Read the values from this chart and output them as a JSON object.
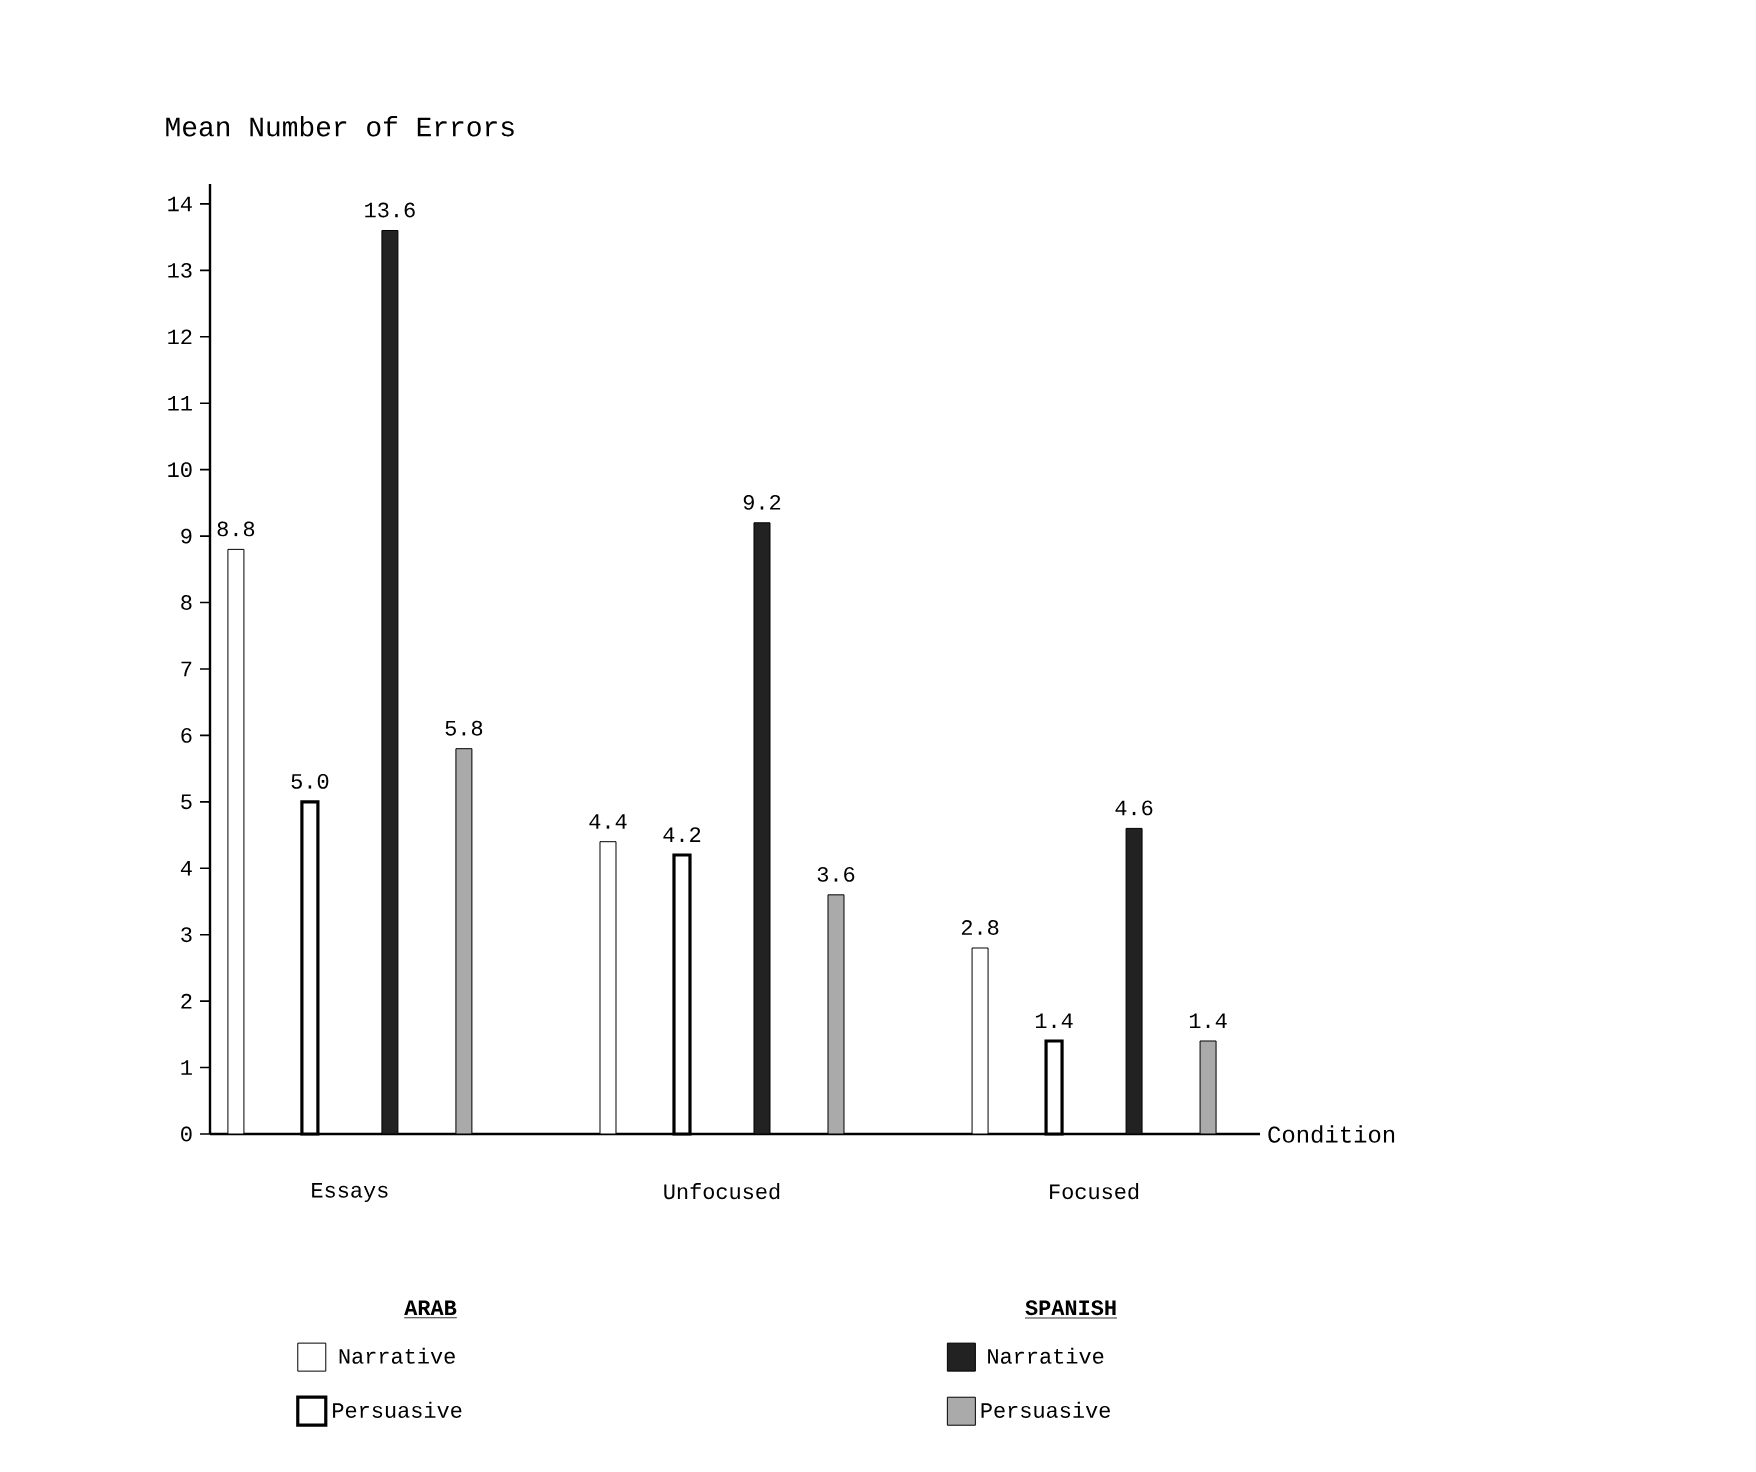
{
  "chart_data": {
    "type": "bar",
    "title": "Mean Number of Errors",
    "xlabel": "Condition",
    "categories": [
      "Essays",
      "Unfocused",
      "Focused"
    ],
    "series": [
      {
        "name": "Narrative",
        "color": "#ffffff",
        "values": [
          8.8,
          4.4,
          2.8
        ],
        "value_labels": [
          "8.8",
          "4.4",
          "2.8"
        ]
      },
      {
        "name": "Persuasive",
        "color": "#ffffff",
        "values": [
          5.0,
          4.2,
          1.4
        ],
        "value_labels": [
          "5.0",
          "4.2",
          "1.4"
        ]
      },
      {
        "name": "Narrative",
        "color": "#222222",
        "values": [
          13.6,
          9.2,
          4.6
        ],
        "value_labels": [
          "13.6",
          "9.2",
          "4.6"
        ]
      },
      {
        "name": "Persuasive",
        "color": "#aaaaaa",
        "values": [
          5.8,
          3.6,
          1.4
        ],
        "value_labels": [
          "5.8",
          "3.6",
          "1.4"
        ]
      }
    ],
    "annotations": [
      "ARAB",
      "SPANISH"
    ],
    "ylim": [
      0,
      14.3
    ],
    "yticks": [
      0,
      1,
      2,
      3,
      4,
      5,
      6,
      7,
      8,
      9,
      10,
      11,
      12,
      13,
      14
    ],
    "grid": false,
    "legend": "bottom"
  }
}
